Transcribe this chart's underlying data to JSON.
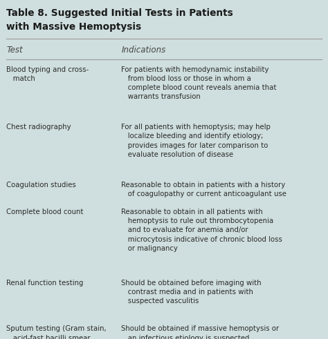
{
  "title_line1": "Table 8. Suggested Initial Tests in Patients",
  "title_line2": "with Massive Hemoptysis",
  "col1_header": "Test",
  "col2_header": "Indications",
  "background_color": "#cfdede",
  "title_color": "#1a1a1a",
  "text_color": "#2a2a2a",
  "header_text_color": "#444444",
  "line_color": "#999999",
  "rows": [
    {
      "test": "Blood typing and cross-\n   match",
      "indication": "For patients with hemodynamic instability\n   from blood loss or those in whom a\n   complete blood count reveals anemia that\n   warrants transfusion"
    },
    {
      "test": "Chest radiography",
      "indication": "For all patients with hemoptysis; may help\n   localize bleeding and identify etiology;\n   provides images for later comparison to\n   evaluate resolution of disease"
    },
    {
      "test": "Coagulation studies",
      "indication": "Reasonable to obtain in patients with a history\n   of coagulopathy or current anticoagulant use"
    },
    {
      "test": "Complete blood count",
      "indication": "Reasonable to obtain in all patients with\n   hemoptysis to rule out thrombocytopenia\n   and to evaluate for anemia and/or\n   microcytosis indicative of chronic blood loss\n   or malignancy"
    },
    {
      "test": "Renal function testing",
      "indication": "Should be obtained before imaging with\n   contrast media and in patients with\n   suspected vasculitis"
    },
    {
      "test": "Sputum testing (Gram stain,\n   acid-fast bacilli smear,\n   fungal cultures, cytology)",
      "indication": "Should be obtained if massive hemoptysis or\n   an infectious etiology is suspected"
    }
  ],
  "figsize": [
    4.74,
    4.91
  ],
  "dpi": 100
}
